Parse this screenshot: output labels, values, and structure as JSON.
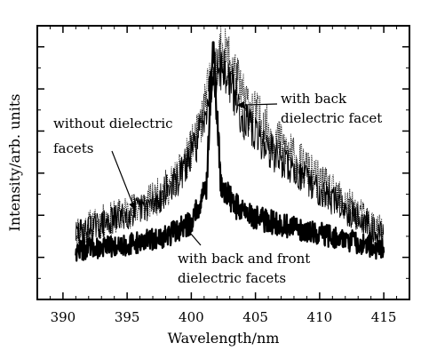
{
  "chart_data": {
    "type": "line",
    "title": "",
    "xlabel": "Wavelength/nm",
    "ylabel": "Intensity/arb. units",
    "xlim": [
      388,
      417
    ],
    "ylim": [
      0,
      1
    ],
    "x_ticks": [
      390,
      395,
      400,
      405,
      410,
      415
    ],
    "y_tick_labels_shown": false,
    "y_minor_ticks": 12,
    "grid": false,
    "legend": "none",
    "series": [
      {
        "key": "without",
        "style": "dotted",
        "color": "#000000",
        "x_range": [
          391,
          415
        ],
        "profile": [
          [
            391,
            0.25
          ],
          [
            394,
            0.3
          ],
          [
            397,
            0.36
          ],
          [
            399,
            0.45
          ],
          [
            400.5,
            0.6
          ],
          [
            401.6,
            0.82
          ],
          [
            402.2,
            0.9
          ],
          [
            403,
            0.88
          ],
          [
            404,
            0.74
          ],
          [
            406,
            0.62
          ],
          [
            408,
            0.52
          ],
          [
            410,
            0.43
          ],
          [
            412,
            0.35
          ],
          [
            415,
            0.24
          ]
        ]
      },
      {
        "key": "back",
        "style": "solid-thin",
        "color": "#000000",
        "x_range": [
          391,
          415
        ],
        "profile": [
          [
            391,
            0.24
          ],
          [
            394,
            0.29
          ],
          [
            397,
            0.35
          ],
          [
            399,
            0.44
          ],
          [
            400.5,
            0.58
          ],
          [
            401.6,
            0.8
          ],
          [
            402.2,
            0.86
          ],
          [
            403,
            0.8
          ],
          [
            404,
            0.66
          ],
          [
            406,
            0.55
          ],
          [
            408,
            0.47
          ],
          [
            410,
            0.4
          ],
          [
            412,
            0.33
          ],
          [
            415,
            0.23
          ]
        ]
      },
      {
        "key": "back_front",
        "style": "solid-thick",
        "color": "#000000",
        "x_range": [
          391,
          415
        ],
        "peak": [
          401.7,
          0.94
        ],
        "profile": [
          [
            391,
            0.18
          ],
          [
            395,
            0.2
          ],
          [
            398,
            0.23
          ],
          [
            400,
            0.28
          ],
          [
            401.2,
            0.42
          ],
          [
            401.7,
            0.94
          ],
          [
            402.3,
            0.42
          ],
          [
            403.5,
            0.34
          ],
          [
            405,
            0.3
          ],
          [
            408,
            0.26
          ],
          [
            412,
            0.22
          ],
          [
            415,
            0.18
          ]
        ]
      }
    ],
    "annotations": [
      {
        "key": "without",
        "lines": [
          "without dielectric",
          "facets"
        ],
        "arrow_to": [
          395.6,
          0.33
        ]
      },
      {
        "key": "back",
        "lines": [
          "with back",
          "dielectric facet"
        ],
        "arrow_to": [
          403.6,
          0.71
        ]
      },
      {
        "key": "back_front",
        "lines": [
          "with back and front",
          "dielectric facets"
        ],
        "arrow_to": [
          399.6,
          0.26
        ]
      }
    ]
  }
}
